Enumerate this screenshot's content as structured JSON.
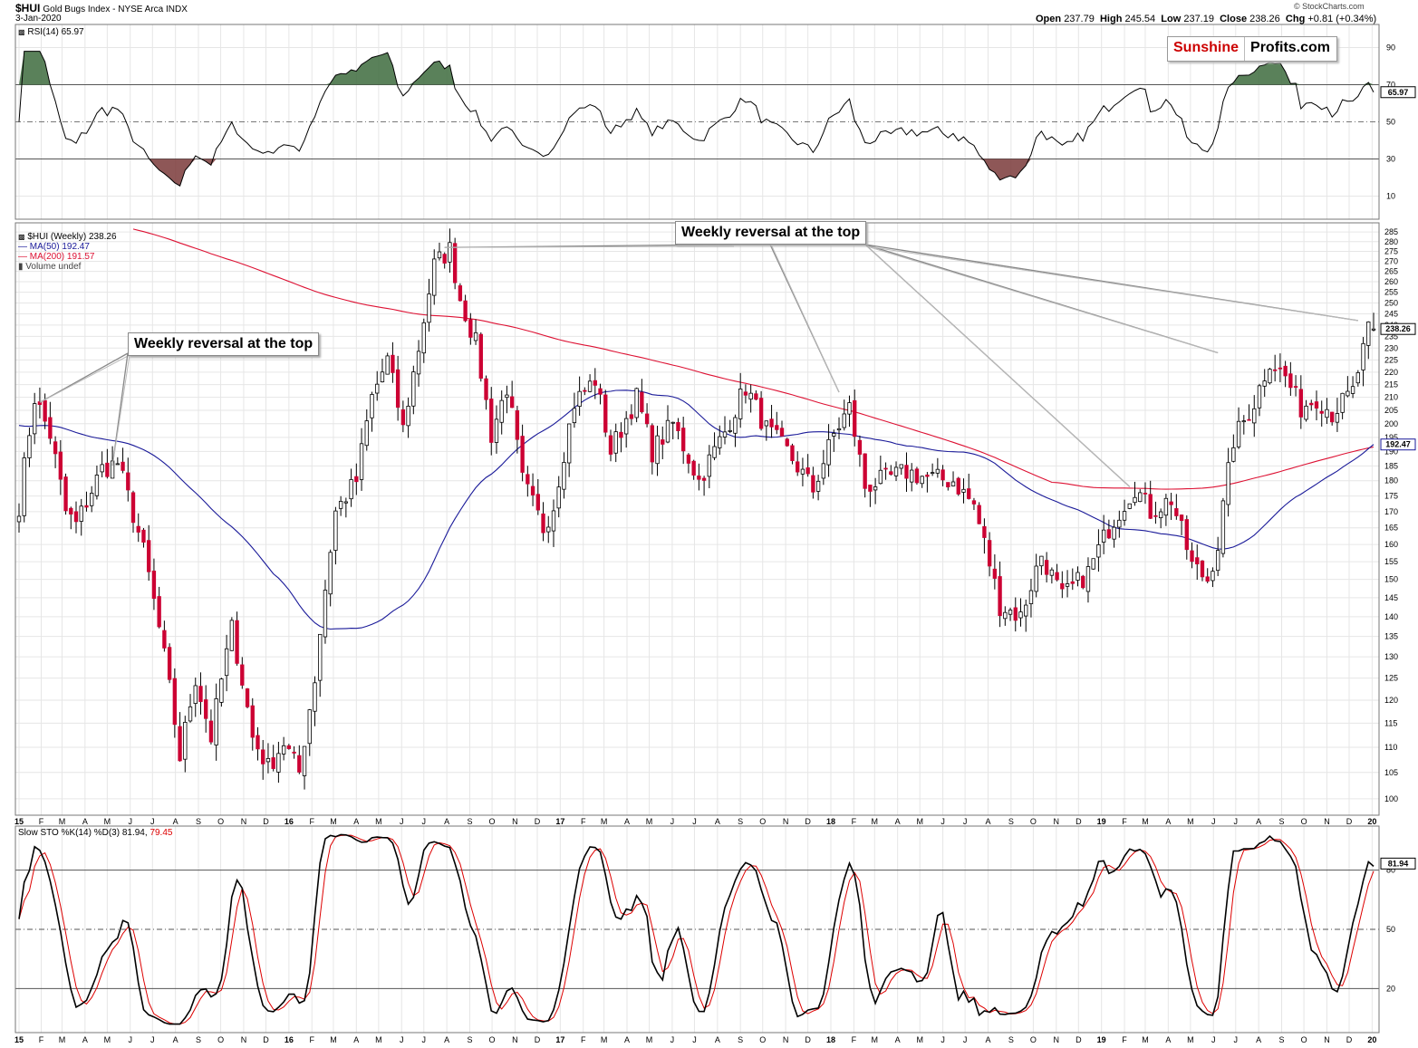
{
  "header": {
    "symbol": "$HUI",
    "name": "Gold Bugs Index - NYSE Arca INDX",
    "date": "3-Jan-2020",
    "open_label": "Open",
    "open": "237.79",
    "high_label": "High",
    "high": "245.54",
    "low_label": "Low",
    "low": "237.19",
    "close_label": "Close",
    "close": "238.26",
    "chg_label": "Chg",
    "chg": "+0.81 (+0.34%)",
    "credit": "© StockCharts.com"
  },
  "brand": {
    "part1": "Sunshine",
    "part2": "Profits.com",
    "color1": "#cc0000",
    "color2": "#000000"
  },
  "annotations": {
    "top_left": "Weekly reversal at the top",
    "top_mid": "Weekly reversal at the top"
  },
  "legend": {
    "price": "$HUI (Weekly) 238.26",
    "ma50": "MA(50) 192.47",
    "ma200": "MA(200) 191.57",
    "volume": "Volume undef"
  },
  "rsi_panel": {
    "label": "RSI(14) 65.97",
    "value_tag": "65.97",
    "ticks": [
      "90",
      "70",
      "50",
      "30",
      "10"
    ]
  },
  "sto_panel": {
    "label_prefix": "Slow STO %K(14) %D(3) 81.94,",
    "label_d": "79.45",
    "k_tag": "81.94",
    "d_tag": "79.45",
    "ticks": [
      "80",
      "50",
      "20"
    ]
  },
  "price_axis": {
    "ticks": [
      "285",
      "280",
      "275",
      "270",
      "265",
      "260",
      "255",
      "250",
      "245",
      "240",
      "235",
      "230",
      "225",
      "220",
      "215",
      "210",
      "205",
      "200",
      "195",
      "190",
      "185",
      "180",
      "175",
      "170",
      "165",
      "160",
      "155",
      "150",
      "145",
      "140",
      "135",
      "130",
      "125",
      "120",
      "115",
      "110",
      "105",
      "100"
    ],
    "last_tag": "238.26",
    "ma_tag": "192.47"
  },
  "x_axis": [
    "15",
    "F",
    "M",
    "A",
    "M",
    "J",
    "J",
    "A",
    "S",
    "O",
    "N",
    "D",
    "16",
    "F",
    "M",
    "A",
    "M",
    "J",
    "J",
    "A",
    "S",
    "O",
    "N",
    "D",
    "17",
    "F",
    "M",
    "A",
    "M",
    "J",
    "J",
    "A",
    "S",
    "O",
    "N",
    "D",
    "18",
    "F",
    "M",
    "A",
    "M",
    "J",
    "J",
    "A",
    "S",
    "O",
    "N",
    "D",
    "19",
    "F",
    "M",
    "A",
    "M",
    "J",
    "J",
    "A",
    "S",
    "O",
    "N",
    "D",
    "20"
  ],
  "colors": {
    "up": "#ffffff",
    "down": "#cc0033",
    "ma50": "#1a1a99",
    "ma200": "#dd1133",
    "rsi_over": "#3d6b3d",
    "rsi_under": "#7a3a3a",
    "d_line": "#dd0000"
  },
  "chart_data": {
    "type": "candlestick",
    "title": "$HUI Gold Bugs Index (Weekly)",
    "start": "2015-01-02",
    "end": "2020-01-03",
    "frequency": "weekly",
    "close_anchors": [
      [
        "2015-01-02",
        172
      ],
      [
        "2015-01-23",
        210
      ],
      [
        "2015-02-13",
        196
      ],
      [
        "2015-03-06",
        170
      ],
      [
        "2015-03-20",
        166
      ],
      [
        "2015-04-24",
        184
      ],
      [
        "2015-05-15",
        186
      ],
      [
        "2015-06-19",
        158
      ],
      [
        "2015-07-17",
        130
      ],
      [
        "2015-08-07",
        108
      ],
      [
        "2015-08-28",
        125
      ],
      [
        "2015-09-18",
        112
      ],
      [
        "2015-10-16",
        137
      ],
      [
        "2015-11-13",
        112
      ],
      [
        "2015-12-04",
        106
      ],
      [
        "2015-12-25",
        111
      ],
      [
        "2016-01-15",
        105
      ],
      [
        "2016-02-05",
        125
      ],
      [
        "2016-03-04",
        170
      ],
      [
        "2016-04-01",
        180
      ],
      [
        "2016-04-22",
        210
      ],
      [
        "2016-05-13",
        225
      ],
      [
        "2016-06-03",
        198
      ],
      [
        "2016-06-24",
        230
      ],
      [
        "2016-07-15",
        268
      ],
      [
        "2016-08-05",
        276
      ],
      [
        "2016-08-19",
        252
      ],
      [
        "2016-09-09",
        232
      ],
      [
        "2016-09-30",
        196
      ],
      [
        "2016-10-21",
        214
      ],
      [
        "2016-11-11",
        180
      ],
      [
        "2016-12-09",
        165
      ],
      [
        "2016-12-23",
        172
      ],
      [
        "2017-01-20",
        208
      ],
      [
        "2017-02-17",
        217
      ],
      [
        "2017-03-10",
        190
      ],
      [
        "2017-04-14",
        210
      ],
      [
        "2017-05-05",
        190
      ],
      [
        "2017-06-02",
        200
      ],
      [
        "2017-07-07",
        180
      ],
      [
        "2017-08-11",
        197
      ],
      [
        "2017-09-08",
        214
      ],
      [
        "2017-10-06",
        198
      ],
      [
        "2017-11-03",
        190
      ],
      [
        "2017-12-08",
        177
      ],
      [
        "2018-01-05",
        196
      ],
      [
        "2018-01-26",
        206
      ],
      [
        "2018-02-16",
        178
      ],
      [
        "2018-03-09",
        180
      ],
      [
        "2018-04-13",
        183
      ],
      [
        "2018-05-11",
        181
      ],
      [
        "2018-06-15",
        180
      ],
      [
        "2018-07-13",
        172
      ],
      [
        "2018-08-17",
        143
      ],
      [
        "2018-09-14",
        140
      ],
      [
        "2018-10-12",
        157
      ],
      [
        "2018-11-09",
        145
      ],
      [
        "2018-12-14",
        152
      ],
      [
        "2019-01-11",
        165
      ],
      [
        "2019-02-15",
        178
      ],
      [
        "2019-03-08",
        170
      ],
      [
        "2019-04-05",
        174
      ],
      [
        "2019-05-03",
        154
      ],
      [
        "2019-05-24",
        150
      ],
      [
        "2019-06-07",
        160
      ],
      [
        "2019-06-28",
        194
      ],
      [
        "2019-07-26",
        208
      ],
      [
        "2019-08-16",
        225
      ],
      [
        "2019-09-06",
        218
      ],
      [
        "2019-09-27",
        206
      ],
      [
        "2019-10-18",
        210
      ],
      [
        "2019-11-08",
        204
      ],
      [
        "2019-12-06",
        212
      ],
      [
        "2019-12-27",
        237
      ],
      [
        "2020-01-03",
        238.26
      ]
    ],
    "last_bar": {
      "open": 237.79,
      "high": 245.54,
      "low": 237.19,
      "close": 238.26
    },
    "ma50_last": 192.47,
    "ma200_last": 191.57,
    "rsi_last": 65.97,
    "sto_k_last": 81.94,
    "sto_d_last": 79.45,
    "ylim": [
      98,
      287
    ],
    "rsi_ylim": [
      0,
      100
    ],
    "sto_ylim": [
      0,
      100
    ],
    "grid": true
  }
}
